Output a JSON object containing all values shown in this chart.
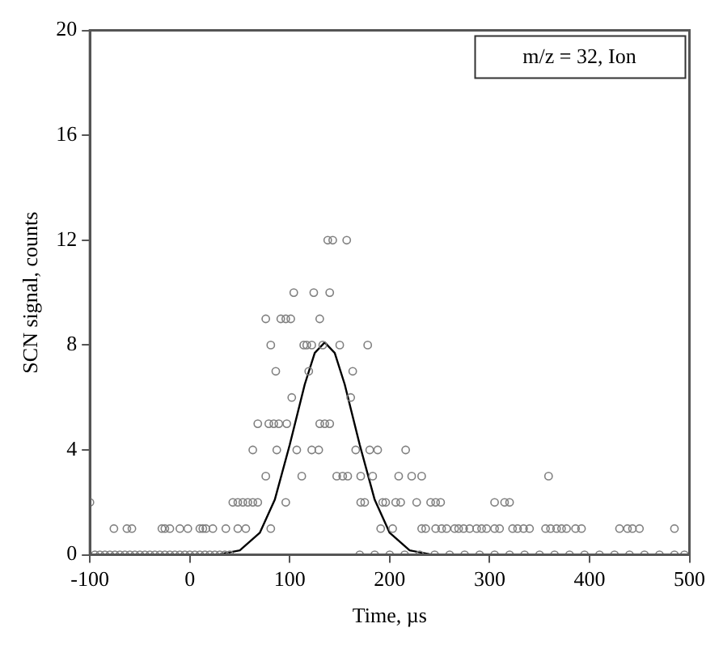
{
  "chart_data": {
    "type": "scatter",
    "xlabel": "Time, µs",
    "ylabel": "SCN signal, counts",
    "xlim": [
      -100,
      500
    ],
    "xticks": [
      -100,
      0,
      100,
      200,
      300,
      400,
      500
    ],
    "ylim": [
      0,
      20
    ],
    "yticks": [
      0,
      4,
      8,
      12,
      16,
      20
    ],
    "grid": false,
    "legend": false,
    "marker": "circle",
    "annotations": [
      "m/z = 32, Ion"
    ],
    "series": [
      {
        "color": "#808080",
        "x": [
          138,
          143,
          157,
          104,
          124,
          140,
          76,
          91,
          96,
          101,
          130,
          81,
          114,
          117,
          122,
          133,
          150,
          178,
          86,
          119,
          163,
          102,
          161,
          68,
          79,
          84,
          89,
          97,
          130,
          135,
          140,
          63,
          87,
          107,
          122,
          129,
          166,
          180,
          188,
          216,
          76,
          112,
          147,
          153,
          158,
          171,
          183,
          209,
          222,
          232,
          359,
          -100,
          43,
          48,
          53,
          58,
          63,
          68,
          96,
          171,
          175,
          193,
          196,
          206,
          211,
          227,
          241,
          246,
          251,
          305,
          315,
          320,
          -76,
          -63,
          -58,
          -28,
          -25,
          -20,
          -10,
          -2,
          10,
          13,
          16,
          23,
          36,
          48,
          56,
          81,
          191,
          203,
          232,
          236,
          246,
          252,
          257,
          265,
          269,
          274,
          280,
          287,
          292,
          297,
          305,
          310,
          323,
          328,
          334,
          340,
          356,
          361,
          367,
          372,
          377,
          386,
          392,
          430,
          438,
          443,
          450,
          485,
          -95,
          -90,
          -85,
          -80,
          -75,
          -70,
          -65,
          -60,
          -55,
          -50,
          -45,
          -40,
          -35,
          -30,
          -25,
          -20,
          -15,
          -10,
          -5,
          0,
          5,
          10,
          15,
          20,
          25,
          30,
          35,
          40,
          170,
          185,
          200,
          215,
          230,
          245,
          260,
          275,
          290,
          305,
          320,
          335,
          350,
          365,
          380,
          395,
          410,
          425,
          440,
          455,
          470,
          485,
          495
        ],
        "values": [
          12,
          12,
          12,
          10,
          10,
          10,
          9,
          9,
          9,
          9,
          9,
          8,
          8,
          8,
          8,
          8,
          8,
          8,
          7,
          7,
          7,
          6,
          6,
          5,
          5,
          5,
          5,
          5,
          5,
          5,
          5,
          4,
          4,
          4,
          4,
          4,
          4,
          4,
          4,
          4,
          3,
          3,
          3,
          3,
          3,
          3,
          3,
          3,
          3,
          3,
          3,
          2,
          2,
          2,
          2,
          2,
          2,
          2,
          2,
          2,
          2,
          2,
          2,
          2,
          2,
          2,
          2,
          2,
          2,
          2,
          2,
          2,
          1,
          1,
          1,
          1,
          1,
          1,
          1,
          1,
          1,
          1,
          1,
          1,
          1,
          1,
          1,
          1,
          1,
          1,
          1,
          1,
          1,
          1,
          1,
          1,
          1,
          1,
          1,
          1,
          1,
          1,
          1,
          1,
          1,
          1,
          1,
          1,
          1,
          1,
          1,
          1,
          1,
          1,
          1,
          1,
          1,
          1,
          1,
          1,
          0,
          0,
          0,
          0,
          0,
          0,
          0,
          0,
          0,
          0,
          0,
          0,
          0,
          0,
          0,
          0,
          0,
          0,
          0,
          0,
          0,
          0,
          0,
          0,
          0,
          0,
          0,
          0,
          0,
          0,
          0,
          0,
          0,
          0,
          0,
          0,
          0,
          0,
          0,
          0,
          0,
          0,
          0,
          0,
          0,
          0,
          0,
          0,
          0,
          0,
          0
        ]
      },
      {
        "type": "line",
        "marker": "none",
        "color": "#000000",
        "x": [
          -100,
          0,
          30,
          50,
          70,
          85,
          100,
          115,
          125,
          135,
          145,
          155,
          170,
          185,
          200,
          220,
          240,
          300,
          500
        ],
        "values": [
          0,
          0,
          0.02,
          0.17,
          0.84,
          2.1,
          4.2,
          6.5,
          7.7,
          8.1,
          7.7,
          6.5,
          4.2,
          2.1,
          0.84,
          0.17,
          0.02,
          0,
          0
        ]
      }
    ]
  }
}
